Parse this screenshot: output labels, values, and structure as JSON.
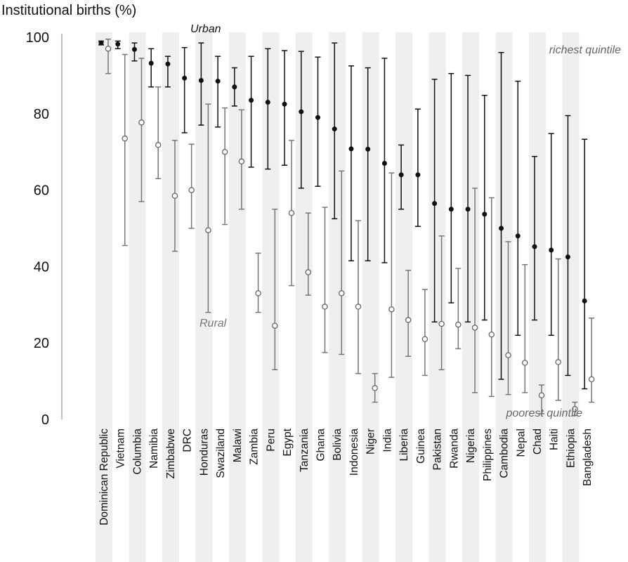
{
  "chart_data": {
    "type": "errorbar",
    "ylabel": "Institutional births (%)",
    "ylim": [
      0,
      100
    ],
    "yticks": [
      0,
      20,
      40,
      60,
      80,
      100
    ],
    "grid": false,
    "legend": "none",
    "annotations": {
      "urban": "Urban",
      "rural": "Rural",
      "richest": "richest quintile",
      "poorest": "poorest quintile"
    },
    "categories": [
      "Dominican Republic",
      "Vietnam",
      "Columbia",
      "Namibia",
      "Zimbabwe",
      "DRC",
      "Honduras",
      "Swaziland",
      "Malawi",
      "Zambia",
      "Peru",
      "Egypt",
      "Tanzania",
      "Ghana",
      "Bolivia",
      "Indonesia",
      "Niger",
      "India",
      "Liberia",
      "Guinea",
      "Pakistan",
      "Rwanda",
      "Nigeria",
      "Philippines",
      "Cambodia",
      "Nepal",
      "Chad",
      "Haiti",
      "Ethiopia",
      "Bangladesh"
    ],
    "series": [
      {
        "name": "Urban",
        "marker": "filled",
        "color": "#111111",
        "values": [
          98.5,
          98.2,
          96.8,
          93.2,
          93.0,
          89.3,
          88.7,
          88.5,
          87.0,
          83.5,
          83.0,
          82.5,
          80.5,
          79.0,
          76.0,
          70.8,
          70.7,
          67.0,
          64.0,
          64.0,
          56.5,
          55.0,
          55.0,
          53.7,
          50.0,
          48.0,
          45.2,
          44.3,
          42.5,
          31.0
        ],
        "poorest_quintile": [
          98.0,
          97.0,
          93.8,
          87.0,
          87.0,
          75.0,
          77.0,
          76.5,
          82.0,
          66.0,
          65.5,
          66.5,
          60.5,
          61.0,
          52.5,
          41.5,
          41.5,
          41.0,
          55.0,
          50.5,
          25.5,
          30.5,
          25.5,
          26.0,
          10.5,
          22.0,
          26.0,
          22.0,
          11.5,
          8.0
        ],
        "richest_quintile": [
          99.0,
          99.0,
          98.5,
          97.0,
          95.0,
          97.3,
          98.5,
          95.0,
          92.0,
          95.0,
          97.0,
          96.5,
          96.3,
          94.8,
          98.5,
          92.5,
          92.0,
          94.5,
          71.8,
          81.2,
          89.0,
          90.5,
          90.0,
          84.8,
          96.0,
          88.5,
          68.8,
          74.8,
          79.5,
          73.3
        ]
      },
      {
        "name": "Rural",
        "marker": "open",
        "color": "#777777",
        "values": [
          97.0,
          73.5,
          77.7,
          71.8,
          58.5,
          60.0,
          49.5,
          70.0,
          67.5,
          33.0,
          24.5,
          54.0,
          38.5,
          29.5,
          33.0,
          29.5,
          8.2,
          28.8,
          26.0,
          21.0,
          25.0,
          24.8,
          24.0,
          22.2,
          16.8,
          14.8,
          6.3,
          15.0,
          2.7,
          10.5
        ],
        "poorest_quintile": [
          90.5,
          45.5,
          57.0,
          63.0,
          44.0,
          50.0,
          28.0,
          51.0,
          55.0,
          28.0,
          13.0,
          35.0,
          32.5,
          17.5,
          17.0,
          12.0,
          4.5,
          11.0,
          16.5,
          11.5,
          13.0,
          18.5,
          7.0,
          6.0,
          6.5,
          7.0,
          1.5,
          5.0,
          1.0,
          4.5
        ],
        "richest_quintile": [
          99.5,
          95.5,
          94.5,
          87.0,
          73.0,
          72.0,
          82.5,
          81.5,
          81.0,
          43.5,
          55.0,
          73.0,
          54.0,
          55.5,
          65.0,
          52.0,
          12.0,
          64.5,
          39.0,
          34.0,
          48.0,
          39.5,
          60.5,
          58.0,
          46.5,
          40.5,
          9.0,
          42.0,
          4.5,
          26.5
        ]
      }
    ]
  }
}
